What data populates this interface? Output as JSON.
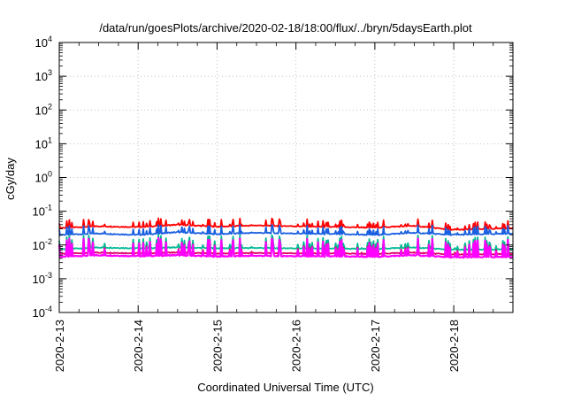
{
  "chart_data": {
    "type": "line",
    "title": "/data/run/goesPlots/archive/2020-02-18/18:00/flux/../bryn/5daysEarth.plot",
    "xlabel": "Coordinated Universal Time (UTC)",
    "ylabel": "cGy/day",
    "yscale": "log",
    "ylim": [
      0.0001,
      10000
    ],
    "y_ticks": [
      {
        "value": 0.0001,
        "base": "10",
        "exp": "-4"
      },
      {
        "value": 0.001,
        "base": "10",
        "exp": "-3"
      },
      {
        "value": 0.01,
        "base": "10",
        "exp": "-2"
      },
      {
        "value": 0.1,
        "base": "10",
        "exp": "-1"
      },
      {
        "value": 1,
        "base": "10",
        "exp": "0"
      },
      {
        "value": 10,
        "base": "10",
        "exp": "1"
      },
      {
        "value": 100,
        "base": "10",
        "exp": "2"
      },
      {
        "value": 1000,
        "base": "10",
        "exp": "3"
      },
      {
        "value": 10000,
        "base": "10",
        "exp": "4"
      }
    ],
    "xlim": [
      "2020-02-13",
      "2020-02-18T18:00"
    ],
    "x_ticks": [
      "2020-2-13",
      "2020-2-14",
      "2020-2-15",
      "2020-2-16",
      "2020-2-17",
      "2020-2-18"
    ],
    "grid": true,
    "legend": "none",
    "series": [
      {
        "color": "#ff0000",
        "x": [
          "2020-02-13",
          "2020-02-13T12:00",
          "2020-02-14",
          "2020-02-14T12:00",
          "2020-02-15",
          "2020-02-15T12:00",
          "2020-02-16",
          "2020-02-16T12:00",
          "2020-02-17",
          "2020-02-17T12:00",
          "2020-02-18",
          "2020-02-18T18:00"
        ],
        "y": [
          0.032,
          0.036,
          0.034,
          0.04,
          0.035,
          0.038,
          0.036,
          0.034,
          0.033,
          0.037,
          0.028,
          0.032
        ]
      },
      {
        "color": "#1a5fe0",
        "x": [
          "2020-02-13",
          "2020-02-13T12:00",
          "2020-02-14",
          "2020-02-14T12:00",
          "2020-02-15",
          "2020-02-15T12:00",
          "2020-02-16",
          "2020-02-16T12:00",
          "2020-02-17",
          "2020-02-17T12:00",
          "2020-02-18",
          "2020-02-18T18:00"
        ],
        "y": [
          0.02,
          0.022,
          0.02,
          0.024,
          0.021,
          0.023,
          0.022,
          0.021,
          0.02,
          0.023,
          0.02,
          0.022
        ]
      },
      {
        "color": "#00b894",
        "x": [
          "2020-02-13",
          "2020-02-13T12:00",
          "2020-02-14",
          "2020-02-14T12:00",
          "2020-02-15",
          "2020-02-15T12:00",
          "2020-02-16",
          "2020-02-16T12:00",
          "2020-02-17",
          "2020-02-17T12:00",
          "2020-02-18",
          "2020-02-18T18:00"
        ],
        "y": [
          0.0075,
          0.0085,
          0.008,
          0.0085,
          0.008,
          0.0082,
          0.008,
          0.0078,
          0.0077,
          0.0085,
          0.0072,
          0.0075
        ]
      },
      {
        "color": "#e0006a",
        "x": [
          "2020-02-13",
          "2020-02-13T12:00",
          "2020-02-14",
          "2020-02-14T12:00",
          "2020-02-15",
          "2020-02-15T12:00",
          "2020-02-16",
          "2020-02-16T12:00",
          "2020-02-17",
          "2020-02-17T12:00",
          "2020-02-18",
          "2020-02-18T18:00"
        ],
        "y": [
          0.0055,
          0.006,
          0.0057,
          0.006,
          0.0056,
          0.0058,
          0.0057,
          0.0056,
          0.0055,
          0.006,
          0.0052,
          0.0055
        ]
      },
      {
        "color": "#ff00ff",
        "x": [
          "2020-02-13",
          "2020-02-13T12:00",
          "2020-02-14",
          "2020-02-14T12:00",
          "2020-02-15",
          "2020-02-15T12:00",
          "2020-02-16",
          "2020-02-16T12:00",
          "2020-02-17",
          "2020-02-17T12:00",
          "2020-02-18",
          "2020-02-18T18:00"
        ],
        "y": [
          0.0045,
          0.005,
          0.0047,
          0.005,
          0.0046,
          0.0048,
          0.0047,
          0.0046,
          0.0045,
          0.005,
          0.0043,
          0.0045
        ]
      }
    ]
  }
}
